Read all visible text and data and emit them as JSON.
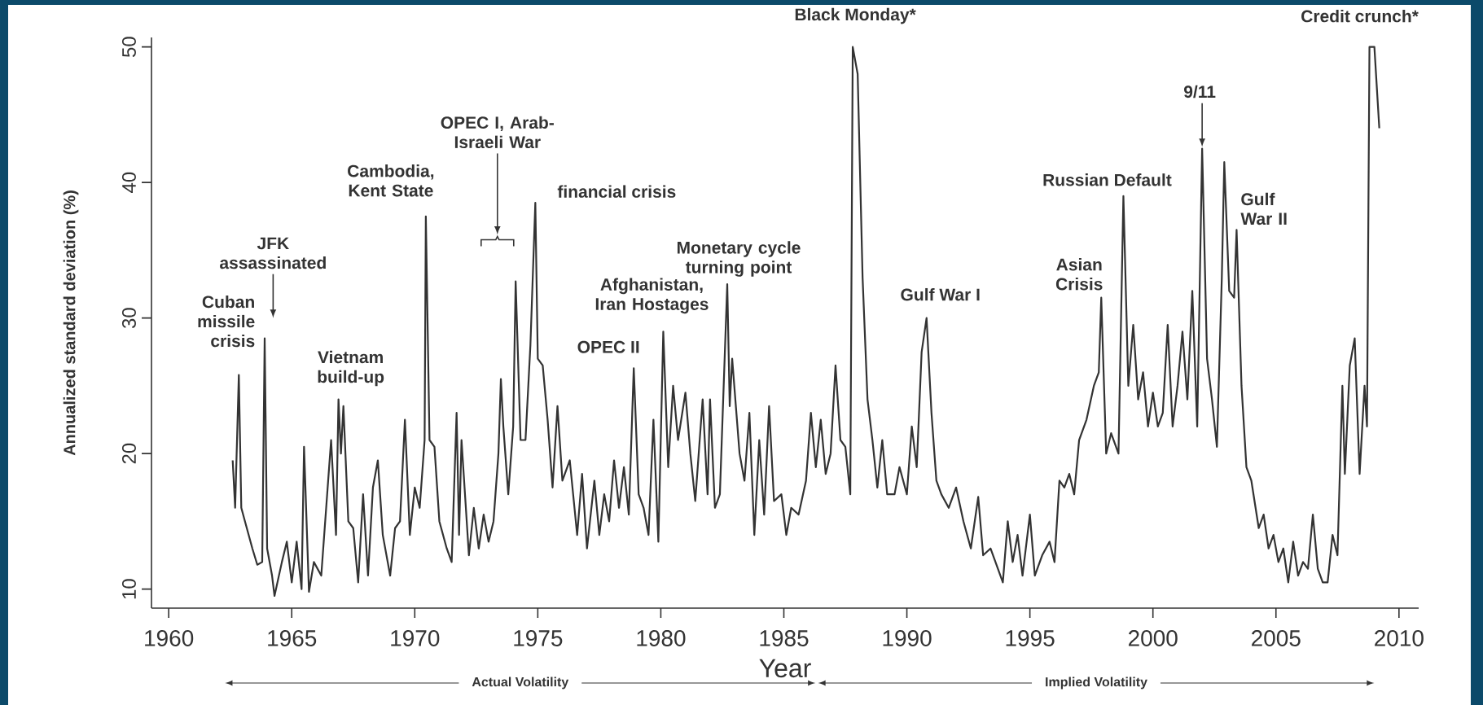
{
  "chart_data": {
    "type": "line",
    "xlabel": "Year",
    "ylabel": "Annualized standard deviation (%)",
    "color": "#333333",
    "line_style": "solid",
    "xlim": [
      1959.3,
      2010.8
    ],
    "ylim": [
      8.6,
      50.7
    ],
    "xticks": [
      1960,
      1965,
      1970,
      1975,
      1980,
      1985,
      1990,
      1995,
      2000,
      2005,
      2010
    ],
    "yticks": [
      10,
      20,
      30,
      40,
      50
    ],
    "x": [
      1962.6,
      1962.7,
      1962.85,
      1962.95,
      1963.1,
      1963.4,
      1963.6,
      1963.8,
      1963.9,
      1964.0,
      1964.2,
      1964.3,
      1964.6,
      1964.8,
      1965.0,
      1965.2,
      1965.4,
      1965.5,
      1965.7,
      1965.9,
      1966.2,
      1966.4,
      1966.6,
      1966.8,
      1966.9,
      1967.0,
      1967.1,
      1967.3,
      1967.5,
      1967.7,
      1967.9,
      1968.1,
      1968.3,
      1968.5,
      1968.7,
      1969.0,
      1969.2,
      1969.4,
      1969.6,
      1969.8,
      1970.0,
      1970.2,
      1970.4,
      1970.45,
      1970.6,
      1970.8,
      1971.0,
      1971.3,
      1971.5,
      1971.7,
      1971.8,
      1971.9,
      1972.2,
      1972.4,
      1972.6,
      1972.8,
      1973.0,
      1973.2,
      1973.4,
      1973.5,
      1973.6,
      1973.8,
      1974.0,
      1974.1,
      1974.3,
      1974.5,
      1974.7,
      1974.9,
      1975.0,
      1975.2,
      1975.4,
      1975.6,
      1975.8,
      1976.0,
      1976.3,
      1976.6,
      1976.8,
      1977.0,
      1977.3,
      1977.5,
      1977.7,
      1977.9,
      1978.1,
      1978.3,
      1978.5,
      1978.7,
      1978.9,
      1979.1,
      1979.3,
      1979.5,
      1979.7,
      1979.9,
      1980.1,
      1980.3,
      1980.5,
      1980.7,
      1981.0,
      1981.2,
      1981.4,
      1981.7,
      1981.9,
      1982.0,
      1982.2,
      1982.4,
      1982.7,
      1982.8,
      1982.9,
      1983.2,
      1983.4,
      1983.6,
      1983.8,
      1984.0,
      1984.2,
      1984.4,
      1984.6,
      1984.9,
      1985.1,
      1985.3,
      1985.6,
      1985.9,
      1986.1,
      1986.3,
      1986.5,
      1986.7,
      1986.9,
      1987.1,
      1987.3,
      1987.5,
      1987.7,
      1987.8,
      1988.0,
      1988.2,
      1988.4,
      1988.6,
      1988.8,
      1989.0,
      1989.2,
      1989.5,
      1989.7,
      1990.0,
      1990.2,
      1990.4,
      1990.6,
      1990.8,
      1991.0,
      1991.2,
      1991.4,
      1991.7,
      1992.0,
      1992.3,
      1992.6,
      1992.9,
      1993.1,
      1993.4,
      1993.7,
      1993.9,
      1994.1,
      1994.3,
      1994.5,
      1994.7,
      1995.0,
      1995.2,
      1995.5,
      1995.8,
      1996.0,
      1996.2,
      1996.4,
      1996.6,
      1996.8,
      1997.0,
      1997.3,
      1997.6,
      1997.8,
      1997.9,
      1998.1,
      1998.3,
      1998.6,
      1998.8,
      1999.0,
      1999.2,
      1999.4,
      1999.6,
      1999.8,
      2000.0,
      2000.2,
      2000.4,
      2000.6,
      2000.8,
      2001.0,
      2001.2,
      2001.4,
      2001.6,
      2001.8,
      2002.0,
      2002.2,
      2002.4,
      2002.6,
      2002.8,
      2002.9,
      2003.1,
      2003.3,
      2003.4,
      2003.6,
      2003.8,
      2004.0,
      2004.3,
      2004.5,
      2004.7,
      2004.9,
      2005.1,
      2005.3,
      2005.5,
      2005.7,
      2005.9,
      2006.1,
      2006.3,
      2006.5,
      2006.7,
      2006.9,
      2007.1,
      2007.3,
      2007.5,
      2007.7,
      2007.8,
      2008.0,
      2008.2,
      2008.4,
      2008.6,
      2008.7,
      2008.8,
      2009.0,
      2009.2
    ],
    "values": [
      19.5,
      16,
      25.8,
      16,
      15,
      13,
      11.8,
      12,
      28.5,
      13,
      11,
      9.5,
      12,
      13.5,
      10.5,
      13.5,
      10,
      20.5,
      9.8,
      12,
      11,
      16,
      21,
      14,
      24,
      20,
      23.5,
      15,
      14.5,
      10.5,
      17,
      11,
      17.5,
      19.5,
      14,
      11,
      14.5,
      15,
      22.5,
      14,
      17.5,
      16,
      21,
      37.5,
      21,
      20.5,
      15,
      13,
      12,
      23,
      14,
      21,
      12.5,
      16,
      13,
      15.5,
      13.5,
      15,
      20,
      25.5,
      22,
      17,
      22,
      32.7,
      21,
      21,
      28,
      38.5,
      27,
      26.5,
      22.5,
      17.5,
      23.5,
      18,
      19.5,
      14,
      18.5,
      13,
      18,
      14,
      17,
      15,
      19.5,
      16,
      19,
      15.5,
      26.3,
      17,
      16,
      14,
      22.5,
      13.5,
      29,
      19,
      25,
      21,
      24.5,
      20,
      16.5,
      24,
      17,
      24,
      16,
      17,
      32.5,
      23.5,
      27,
      20,
      18,
      23,
      14,
      21,
      15.5,
      23.5,
      16.5,
      17,
      14,
      16,
      15.5,
      18,
      23,
      19,
      22.5,
      18.5,
      20,
      26.5,
      21,
      20.5,
      17,
      50,
      48,
      33,
      24,
      21,
      17.5,
      21,
      17,
      17,
      19,
      17,
      22,
      19,
      27.5,
      30,
      23,
      18,
      17,
      16,
      17.5,
      15,
      13,
      16.8,
      12.5,
      13,
      11.5,
      10.5,
      15,
      12,
      14,
      11,
      15.5,
      11,
      12.5,
      13.5,
      12,
      18,
      17.5,
      18.5,
      17,
      21,
      22.5,
      25,
      26,
      31.5,
      20,
      21.5,
      20,
      39,
      25,
      29.5,
      24,
      26,
      22,
      24.5,
      22,
      23,
      29.5,
      22,
      25,
      29,
      24,
      32,
      22,
      42.5,
      27,
      24,
      20.5,
      33,
      41.5,
      32,
      31.5,
      36.5,
      25,
      19,
      18,
      14.5,
      15.5,
      13,
      14,
      12,
      13,
      10.5,
      13.5,
      11,
      12,
      11.5,
      15.5,
      11.5,
      10.5,
      10.5,
      14,
      12.5,
      25,
      18.5,
      26.5,
      28.5,
      18.5,
      25,
      22,
      50,
      50,
      44
    ],
    "annotations": [
      {
        "text": "Cuban missile crisis",
        "x": 1962.85,
        "y": 25.8
      },
      "JFK assassinated",
      {
        "text": "Vietnam build-up",
        "x": 1966.9,
        "y": 24
      },
      {
        "text": "Cambodia, Kent State",
        "x": 1970.45,
        "y": 37.5
      },
      "OPEC I, Arab-Israeli War",
      {
        "text": "financial crisis",
        "x": 1974.9,
        "y": 38.5
      },
      {
        "text": "OPEC II",
        "x": 1978.9,
        "y": 26.3
      },
      {
        "text": "Afghanistan, Iran Hostages",
        "x": 1980.1,
        "y": 29
      },
      {
        "text": "Monetary cycle turning point",
        "x": 1982.7,
        "y": 32.5
      },
      {
        "text": "Black Monday*",
        "x": 1987.8,
        "y": 50
      },
      {
        "text": "Gulf War I",
        "x": 1990.8,
        "y": 30
      },
      {
        "text": "Asian Crisis",
        "x": 1997.9,
        "y": 31.5
      },
      {
        "text": "Russian Default",
        "x": 1998.8,
        "y": 39
      },
      {
        "text": "9/11",
        "x": 2002.0,
        "y": 42.5
      },
      {
        "text": "Gulf War II",
        "x": 2003.4,
        "y": 36.5
      },
      {
        "text": "Credit crunch*",
        "x": 2008.8,
        "y": 50
      },
      "Actual Volatility",
      "Implied Volatility"
    ]
  }
}
